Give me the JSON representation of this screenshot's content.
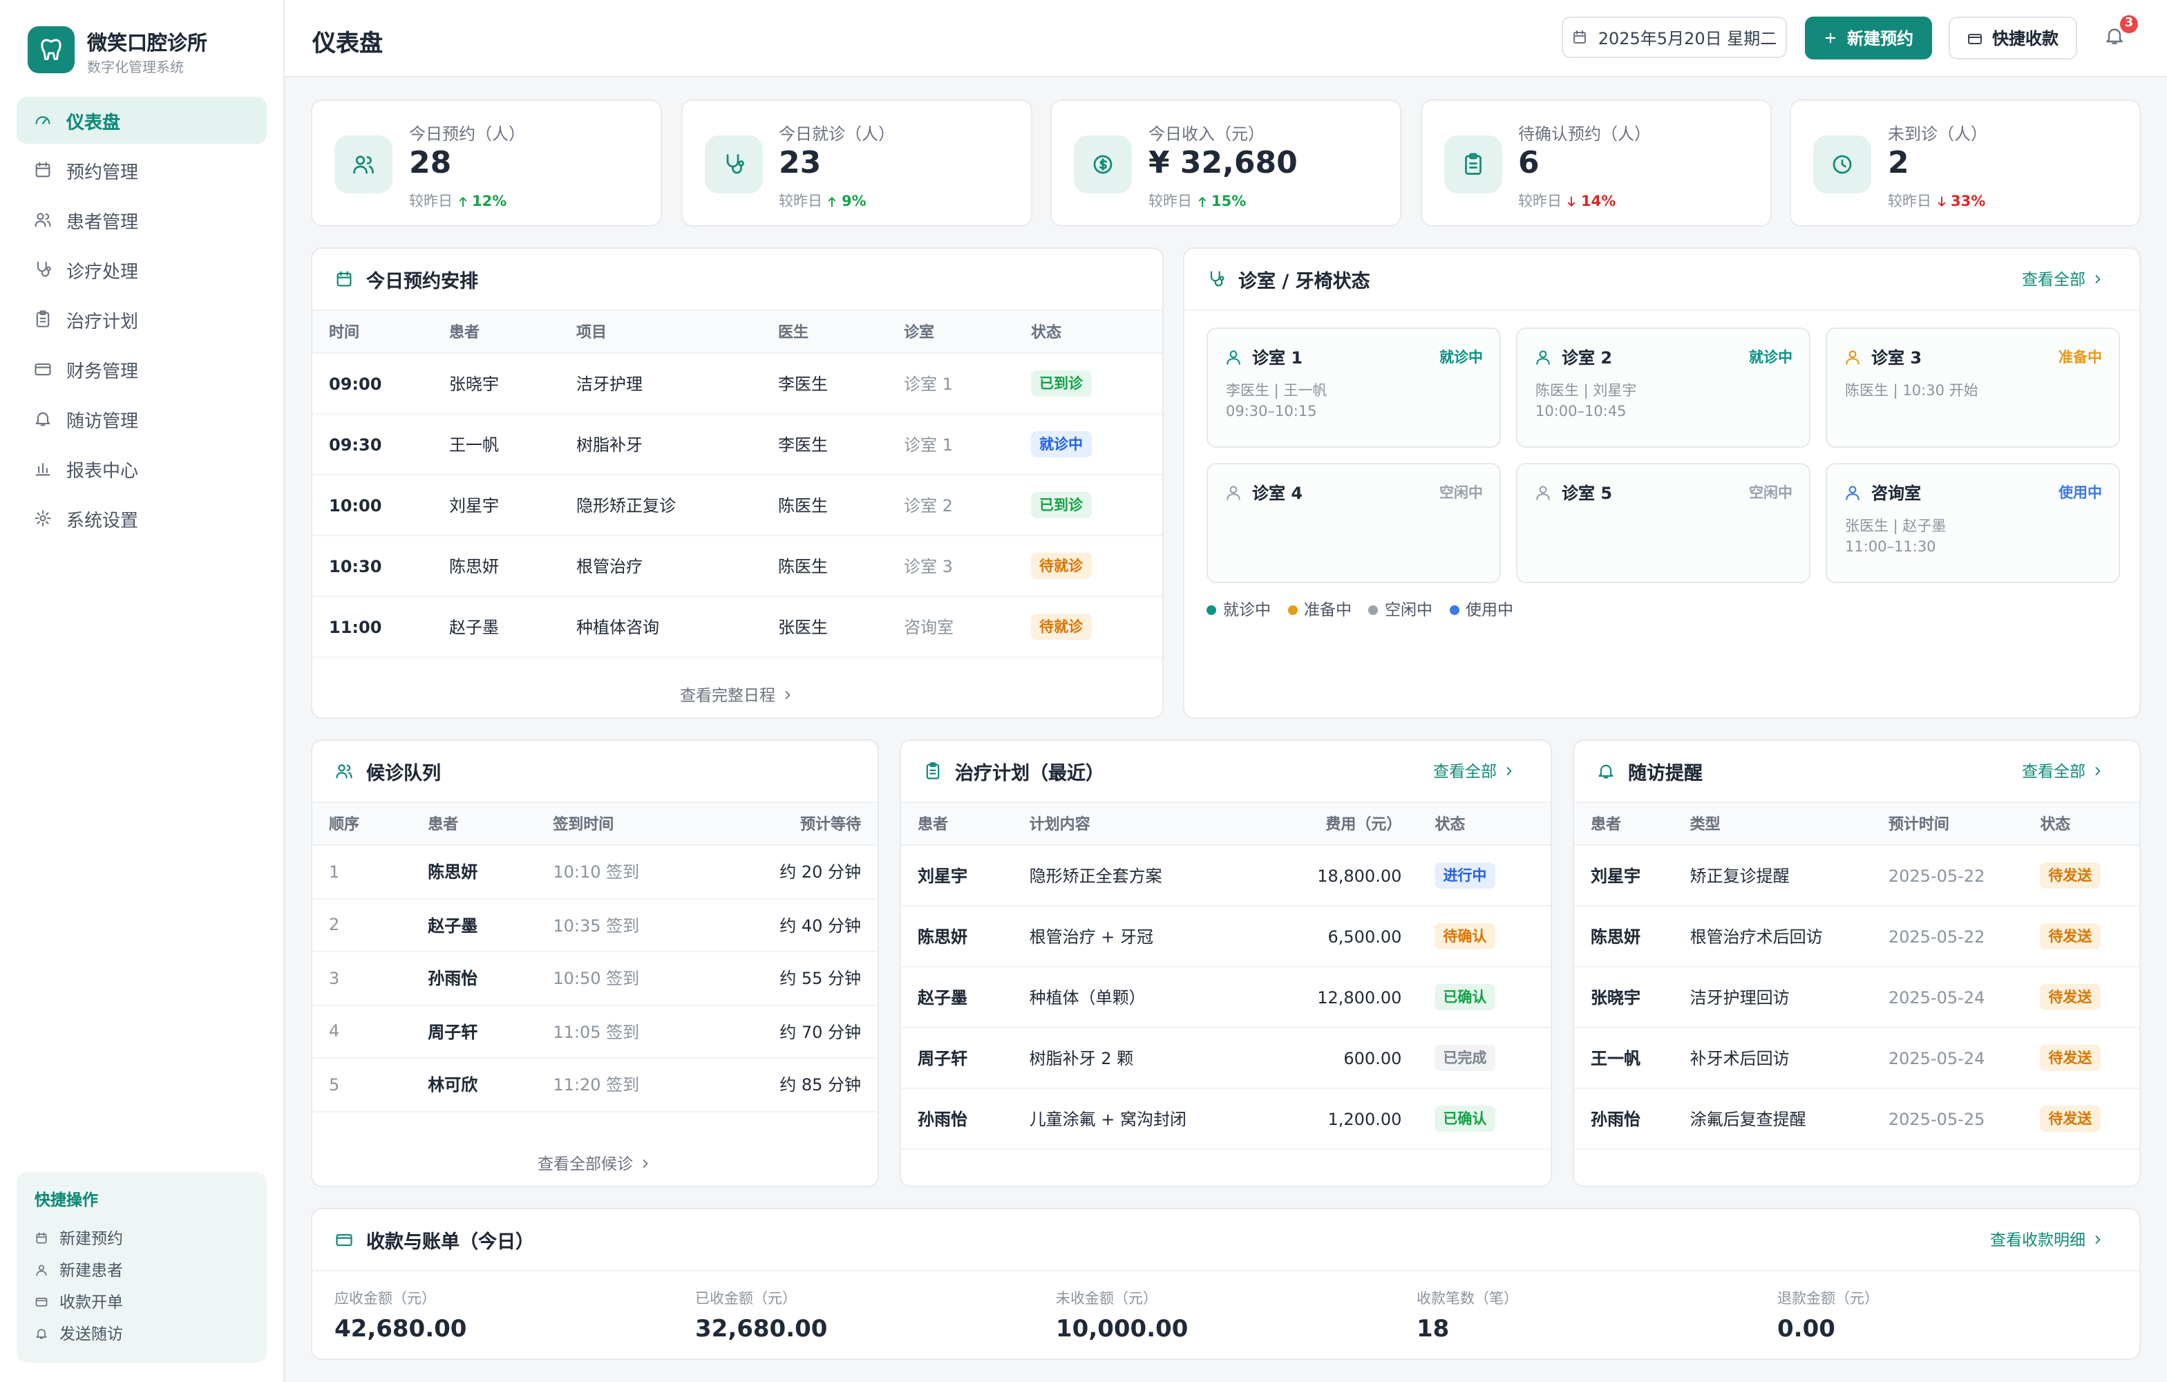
{
  "sidebar": {
    "brand": "微笑口腔诊所",
    "subtitle": "数字化管理系统",
    "nav": [
      "仪表盘",
      "预约管理",
      "患者管理",
      "诊疗处理",
      "治疗计划",
      "财务管理",
      "随访管理",
      "报表中心",
      "系统设置"
    ],
    "quick_actions": {
      "title": "快捷操作",
      "items": [
        "新建预约",
        "新建患者",
        "收款开单",
        "发送随访"
      ]
    }
  },
  "header": {
    "title": "仪表盘",
    "date": "2025年5月20日 星期二",
    "primary_button": "新建预约",
    "secondary_button": "快捷收款",
    "notifications": "3"
  },
  "stats": [
    {
      "label": "今日预约（人）",
      "value": "28",
      "compare": "较昨日",
      "change": "12%",
      "trend": "up"
    },
    {
      "label": "今日就诊（人）",
      "value": "23",
      "compare": "较昨日",
      "change": "9%",
      "trend": "up"
    },
    {
      "label": "今日收入（元）",
      "value": "¥ 32,680",
      "compare": "较昨日",
      "change": "15%",
      "trend": "up"
    },
    {
      "label": "待确认预约（人）",
      "value": "6",
      "compare": "较昨日",
      "change": "14%",
      "trend": "down"
    },
    {
      "label": "未到诊（人）",
      "value": "2",
      "compare": "较昨日",
      "change": "33%",
      "trend": "down"
    }
  ],
  "status_tones": {
    "已到诊": "green",
    "就诊中": "blue",
    "待就诊": "orange",
    "进行中": "blue",
    "待确认": "orange",
    "已确认": "green",
    "已完成": "gray",
    "待发送": "orange"
  },
  "appointments": {
    "title": "今日预约安排",
    "columns": [
      "时间",
      "患者",
      "项目",
      "医生",
      "诊室",
      "状态"
    ],
    "rows": [
      [
        "09:00",
        "张晓宇",
        "洁牙护理",
        "李医生",
        "诊室 1",
        "已到诊"
      ],
      [
        "09:30",
        "王一帆",
        "树脂补牙",
        "李医生",
        "诊室 1",
        "就诊中"
      ],
      [
        "10:00",
        "刘星宇",
        "隐形矫正复诊",
        "陈医生",
        "诊室 2",
        "已到诊"
      ],
      [
        "10:30",
        "陈思妍",
        "根管治疗",
        "陈医生",
        "诊室 3",
        "待就诊"
      ],
      [
        "11:00",
        "赵子墨",
        "种植体咨询",
        "张医生",
        "咨询室",
        "待就诊"
      ]
    ],
    "footer": "查看完整日程"
  },
  "rooms": {
    "title": "诊室 / 牙椅状态",
    "link": "查看全部",
    "items": [
      {
        "name": "诊室 1",
        "status": "就诊中",
        "details": [
          "李医生 | 王一帆",
          "09:30–10:15"
        ]
      },
      {
        "name": "诊室 2",
        "status": "就诊中",
        "details": [
          "陈医生 | 刘星宇",
          "10:00–10:45"
        ]
      },
      {
        "name": "诊室 3",
        "status": "准备中",
        "details": [
          "陈医生 | 10:30 开始"
        ]
      },
      {
        "name": "诊室 4",
        "status": "空闲中",
        "details": []
      },
      {
        "name": "诊室 5",
        "status": "空闲中",
        "details": []
      },
      {
        "name": "咨询室",
        "status": "使用中",
        "details": [
          "张医生 | 赵子墨",
          "11:00–11:30"
        ]
      }
    ],
    "legend": [
      {
        "label": "就诊中",
        "color": "#0f9488"
      },
      {
        "label": "准备中",
        "color": "#e69a1c"
      },
      {
        "label": "空闲中",
        "color": "#9aa3ad"
      },
      {
        "label": "使用中",
        "color": "#3b7be8"
      }
    ]
  },
  "queue": {
    "title": "候诊队列",
    "columns": [
      "顺序",
      "患者",
      "签到时间",
      "预计等待"
    ],
    "rows": [
      [
        "1",
        "陈思妍",
        "10:10 签到",
        "约 20 分钟"
      ],
      [
        "2",
        "赵子墨",
        "10:35 签到",
        "约 40 分钟"
      ],
      [
        "3",
        "孙雨怡",
        "10:50 签到",
        "约 55 分钟"
      ],
      [
        "4",
        "周子轩",
        "11:05 签到",
        "约 70 分钟"
      ],
      [
        "5",
        "林可欣",
        "11:20 签到",
        "约 85 分钟"
      ]
    ],
    "footer": "查看全部候诊"
  },
  "plans": {
    "title": "治疗计划（最近）",
    "link": "查看全部",
    "columns": [
      "患者",
      "计划内容",
      "费用（元）",
      "状态"
    ],
    "rows": [
      [
        "刘星宇",
        "隐形矫正全套方案",
        "18,800.00",
        "进行中"
      ],
      [
        "陈思妍",
        "根管治疗 + 牙冠",
        "6,500.00",
        "待确认"
      ],
      [
        "赵子墨",
        "种植体（单颗）",
        "12,800.00",
        "已确认"
      ],
      [
        "周子轩",
        "树脂补牙 2 颗",
        "600.00",
        "已完成"
      ],
      [
        "孙雨怡",
        "儿童涂氟 + 窝沟封闭",
        "1,200.00",
        "已确认"
      ]
    ]
  },
  "followups": {
    "title": "随访提醒",
    "link": "查看全部",
    "columns": [
      "患者",
      "类型",
      "预计时间",
      "状态"
    ],
    "rows": [
      [
        "刘星宇",
        "矫正复诊提醒",
        "2025-05-22",
        "待发送"
      ],
      [
        "陈思妍",
        "根管治疗术后回访",
        "2025-05-22",
        "待发送"
      ],
      [
        "张晓宇",
        "洁牙护理回访",
        "2025-05-24",
        "待发送"
      ],
      [
        "王一帆",
        "补牙术后回访",
        "2025-05-24",
        "待发送"
      ],
      [
        "孙雨怡",
        "涂氟后复查提醒",
        "2025-05-25",
        "待发送"
      ]
    ]
  },
  "billing": {
    "title": "收款与账单（今日）",
    "link": "查看收款明细",
    "items": [
      {
        "label": "应收金额（元）",
        "value": "42,680.00"
      },
      {
        "label": "已收金额（元）",
        "value": "32,680.00"
      },
      {
        "label": "未收金额（元）",
        "value": "10,000.00"
      },
      {
        "label": "收款笔数（笔）",
        "value": "18"
      },
      {
        "label": "退款金额（元）",
        "value": "0.00"
      }
    ]
  }
}
